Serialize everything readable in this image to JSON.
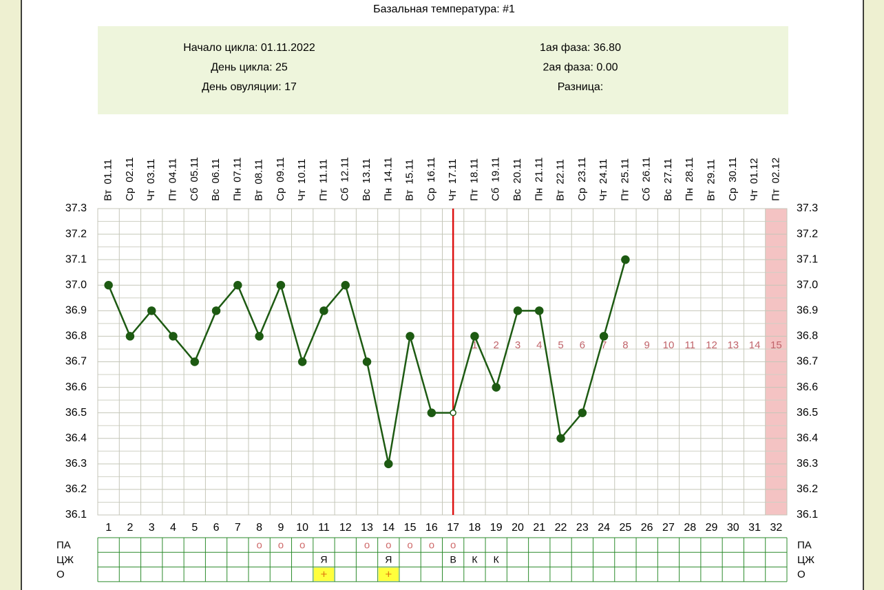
{
  "title": "Базальная температура: #1",
  "info": {
    "left": [
      "Начало цикла: 01.11.2022",
      "День цикла: 25",
      "День овуляции: 17"
    ],
    "right": [
      "1ая фаза: 36.80",
      "2ая фаза: 0.00",
      "Разница:"
    ]
  },
  "chart_data": {
    "type": "line",
    "categories": [
      1,
      2,
      3,
      4,
      5,
      6,
      7,
      8,
      9,
      10,
      11,
      12,
      13,
      14,
      15,
      16,
      17,
      18,
      19,
      20,
      21,
      22,
      23,
      24,
      25,
      26,
      27,
      28,
      29,
      30,
      31,
      32
    ],
    "weekdays": [
      "Вт",
      "Ср",
      "Чт",
      "Пт",
      "Сб",
      "Вс",
      "Пн",
      "Вт",
      "Ср",
      "Чт",
      "Пт",
      "Сб",
      "Вс",
      "Пн",
      "Вт",
      "Ср",
      "Чт",
      "Пт",
      "Сб",
      "Вс",
      "Пн",
      "Вт",
      "Ср",
      "Чт",
      "Пт",
      "Сб",
      "Вс",
      "Пн",
      "Вт",
      "Ср",
      "Чт",
      "Пт"
    ],
    "dates": [
      "01.11",
      "02.11",
      "03.11",
      "04.11",
      "05.11",
      "06.11",
      "07.11",
      "08.11",
      "09.11",
      "10.11",
      "11.11",
      "12.11",
      "13.11",
      "14.11",
      "15.11",
      "16.11",
      "17.11",
      "18.11",
      "19.11",
      "20.11",
      "21.11",
      "22.11",
      "23.11",
      "24.11",
      "25.11",
      "26.11",
      "27.11",
      "28.11",
      "29.11",
      "30.11",
      "01.12",
      "02.12"
    ],
    "values": [
      37.0,
      36.8,
      36.9,
      36.8,
      36.7,
      36.9,
      37.0,
      36.8,
      37.0,
      36.7,
      36.9,
      37.0,
      36.7,
      36.3,
      36.8,
      36.5,
      36.5,
      36.8,
      36.6,
      36.9,
      36.9,
      36.4,
      36.5,
      36.8,
      37.1,
      null,
      null,
      null,
      null,
      null,
      null,
      null
    ],
    "color": "#1d5a12",
    "ylim": [
      36.1,
      37.3
    ],
    "yticks": [
      37.3,
      37.2,
      37.1,
      {
        "value": 37,
        "label": "37.0"
      },
      36.9,
      36.8,
      36.7,
      36.6,
      36.5,
      36.4,
      36.3,
      36.2,
      36.1
    ],
    "grid": true,
    "ovulation_day": 17,
    "ovulation_color": "#dd1111",
    "phase2_counts": [
      1,
      2,
      3,
      4,
      5,
      6,
      7,
      8,
      9,
      10,
      11,
      12,
      13,
      14,
      15
    ],
    "highlight_day": 32
  },
  "observations": {
    "rows": [
      {
        "label": "ПА",
        "cells": [
          null,
          null,
          null,
          null,
          null,
          null,
          null,
          "о",
          "о",
          "о",
          null,
          null,
          "о",
          "о",
          "о",
          "о",
          "о",
          null,
          null,
          null,
          null,
          null,
          null,
          null,
          null,
          null,
          null,
          null,
          null,
          null,
          null,
          null
        ]
      },
      {
        "label": "ЦЖ",
        "cells": [
          null,
          null,
          null,
          null,
          null,
          null,
          null,
          null,
          null,
          null,
          "Я",
          null,
          null,
          "Я",
          null,
          null,
          "В",
          "К",
          "К",
          null,
          null,
          null,
          null,
          null,
          null,
          null,
          null,
          null,
          null,
          null,
          null,
          null
        ]
      },
      {
        "label": "О",
        "cells": [
          null,
          null,
          null,
          null,
          null,
          null,
          null,
          null,
          null,
          null,
          "+",
          null,
          null,
          "+",
          null,
          null,
          null,
          null,
          null,
          null,
          null,
          null,
          null,
          null,
          null,
          null,
          null,
          null,
          null,
          null,
          null,
          null
        ]
      }
    ]
  }
}
